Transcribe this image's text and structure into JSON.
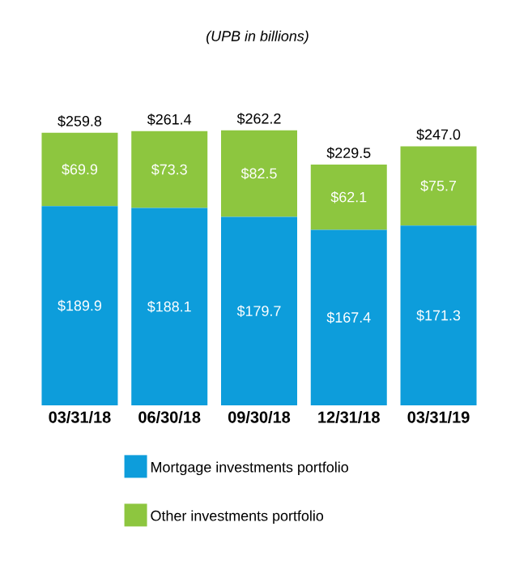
{
  "chart_data": {
    "type": "bar",
    "stacked": true,
    "title": "(UPB in billions)",
    "categories": [
      "03/31/18",
      "06/30/18",
      "09/30/18",
      "12/31/18",
      "03/31/19"
    ],
    "series": [
      {
        "name": "Mortgage investments portfolio",
        "color": "#0d9ddb",
        "values": [
          189.9,
          188.1,
          179.7,
          167.4,
          171.3
        ],
        "value_labels": [
          "$189.9",
          "$188.1",
          "$179.7",
          "$167.4",
          "$171.3"
        ]
      },
      {
        "name": "Other investments portfolio",
        "color": "#8dc63f",
        "values": [
          69.9,
          73.3,
          82.5,
          62.1,
          75.7
        ],
        "value_labels": [
          "$69.9",
          "$73.3",
          "$82.5",
          "$62.1",
          "$75.7"
        ]
      }
    ],
    "totals": [
      "$259.8",
      "$261.4",
      "$262.2",
      "$229.5",
      "$247.0"
    ],
    "legend": "bottom"
  }
}
